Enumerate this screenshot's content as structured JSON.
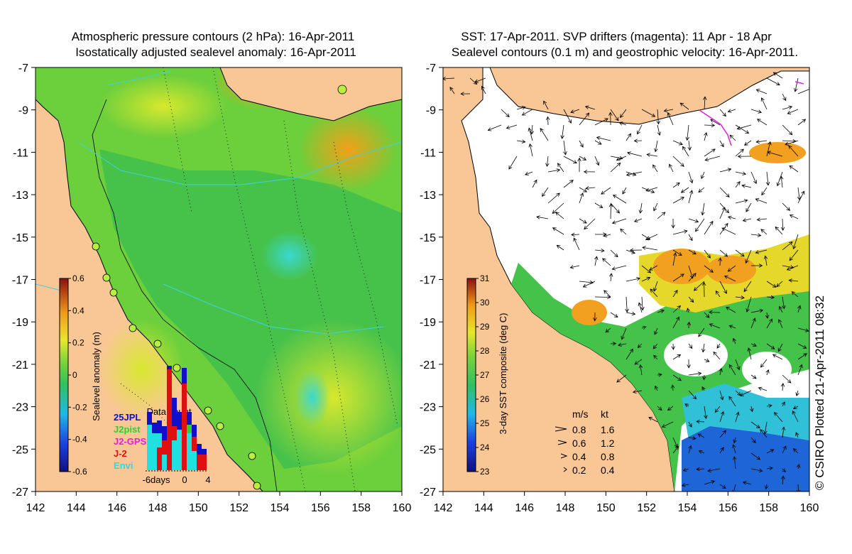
{
  "left_panel": {
    "title_line1": "Atmospheric pressure contours (2 hPa): 16-Apr-2011",
    "title_line2": "Isostatically adjusted sealevel anomaly: 16-Apr-2011",
    "colorbar": {
      "label": "Sealevel anomaly (m)",
      "ticks": [
        "0.6",
        "0.4",
        "0.2",
        "0",
        "-0.2",
        "-0.4",
        "-0.6"
      ],
      "range": [
        -0.6,
        0.6
      ]
    },
    "data_count": {
      "title": "Data count",
      "axis_labels": [
        "-6days",
        "0",
        "4"
      ],
      "missions": [
        {
          "name": "25JPL",
          "color": "#1010c8"
        },
        {
          "name": "J2pist",
          "color": "#30d030"
        },
        {
          "name": "J2-GPS",
          "color": "#e020e0"
        },
        {
          "name": "J-2",
          "color": "#e01010"
        },
        {
          "name": "Envi",
          "color": "#20e0e0"
        }
      ]
    }
  },
  "right_panel": {
    "title_line1": "SST: 17-Apr-2011. SVP drifters (magenta): 11 Apr - 18 Apr",
    "title_line2": "Sealevel contours (0.1 m) and geostrophic velocity: 16-Apr-2011.",
    "colorbar": {
      "label": "3-day SST composite (deg C)",
      "ticks": [
        "31",
        "30",
        "29",
        "28",
        "27",
        "26",
        "25",
        "24",
        "23"
      ],
      "range": [
        23,
        31
      ]
    },
    "velocity_legend": {
      "header_ms": "m/s",
      "header_kt": "kt",
      "rows": [
        {
          "ms": "0.8",
          "kt": "1.6"
        },
        {
          "ms": "0.6",
          "kt": "1.2"
        },
        {
          "ms": "0.4",
          "kt": "0.8"
        },
        {
          "ms": "0.2",
          "kt": "0.4"
        }
      ]
    },
    "credit": "© CSIRO Plotted 21-Apr-2011 08:32"
  },
  "axes": {
    "lat_ticks": [
      "-7",
      "-9",
      "-11",
      "-13",
      "-15",
      "-17",
      "-19",
      "-21",
      "-23",
      "-25",
      "-27"
    ],
    "lon_ticks": [
      "142",
      "144",
      "146",
      "148",
      "150",
      "152",
      "154",
      "156",
      "158",
      "160"
    ],
    "lon_range": [
      142,
      160
    ],
    "lat_range": [
      -27,
      -7
    ]
  },
  "colors": {
    "land": "#f9c795",
    "ocean_green": "#45c24a",
    "ocean_yellow": "#d6e62e",
    "ocean_orange": "#f2a520",
    "ocean_cyan": "#3ad3c3",
    "sst_blue": "#1e66d8",
    "contour_cyan": "#40d0e0"
  }
}
